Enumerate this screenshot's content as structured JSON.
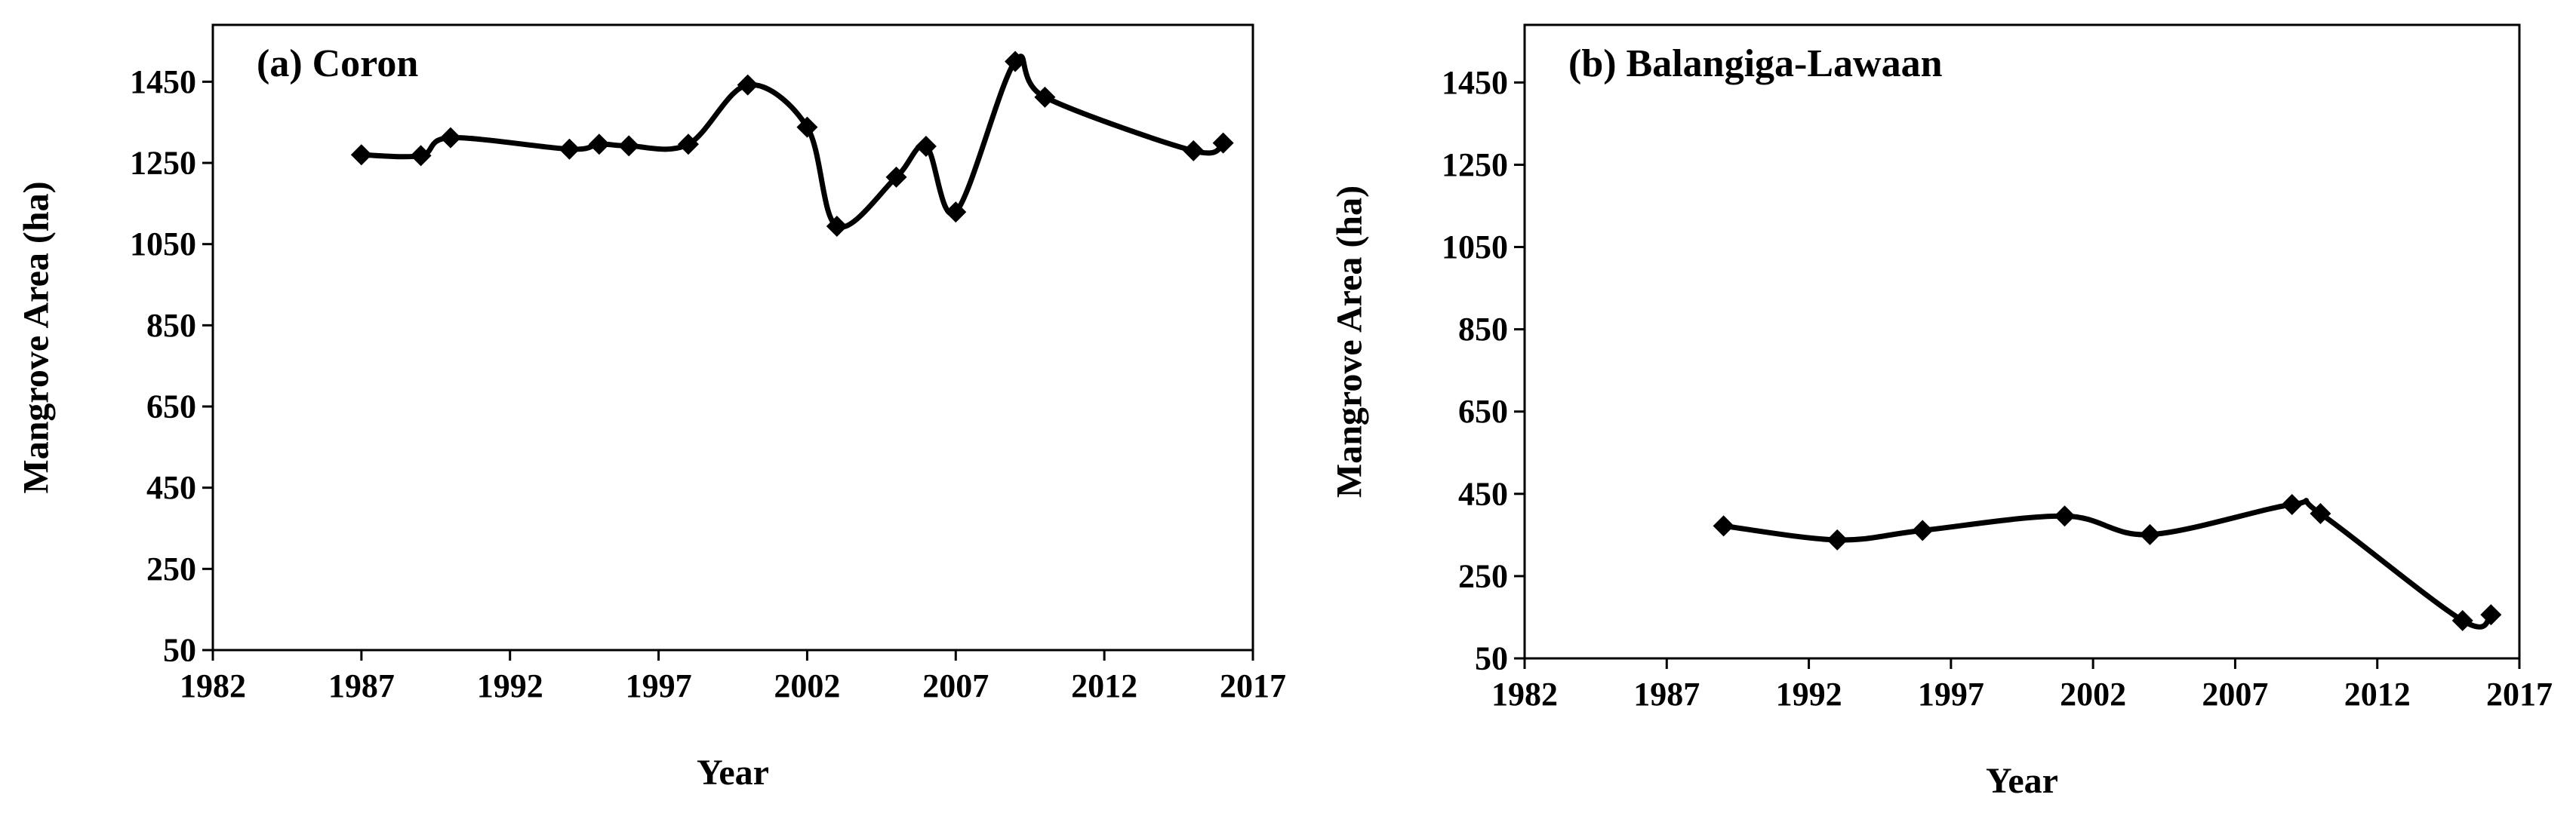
{
  "chart_data": [
    {
      "type": "line",
      "title": "(a) Coron",
      "xlabel": "Year",
      "ylabel": "Mangrove Area (ha)",
      "xlim": [
        1982,
        2017
      ],
      "ylim": [
        50,
        1590
      ],
      "xticks": [
        "1982",
        "1987",
        "1992",
        "1997",
        "2002",
        "2007",
        "2012",
        "2017"
      ],
      "yticks": [
        "50",
        "250",
        "450",
        "650",
        "850",
        "1050",
        "1250",
        "1450"
      ],
      "grid": false,
      "legend": "none",
      "line_color": "#000000",
      "marker": "diamond",
      "smooth": true,
      "series": [
        {
          "x": [
            1987,
            1989,
            1990,
            1994,
            1995,
            1996,
            1998,
            2000,
            2002,
            2003,
            2005,
            2006,
            2007,
            2009,
            2010,
            2015,
            2016
          ],
          "values": [
            1270,
            1268,
            1312,
            1284,
            1296,
            1292,
            1296,
            1442,
            1338,
            1094,
            1215,
            1291,
            1129,
            1500,
            1412,
            1280,
            1299
          ]
        }
      ]
    },
    {
      "type": "line",
      "title": "(b) Balangiga-Lawaan",
      "xlabel": "Year",
      "ylabel": "Mangrove Area (ha)",
      "xlim": [
        1982,
        2017
      ],
      "ylim": [
        50,
        1590
      ],
      "xticks": [
        "1982",
        "1987",
        "1992",
        "1997",
        "2002",
        "2007",
        "2012",
        "2017"
      ],
      "yticks": [
        "50",
        "250",
        "450",
        "650",
        "850",
        "1050",
        "1250",
        "1450"
      ],
      "grid": false,
      "legend": "none",
      "line_color": "#000000",
      "marker": "diamond",
      "smooth": true,
      "series": [
        {
          "x": [
            1989,
            1993,
            1996,
            2001,
            2004,
            2009,
            2010,
            2015,
            2016
          ],
          "values": [
            372,
            338,
            361,
            396,
            351,
            424,
            402,
            142,
            156
          ]
        }
      ]
    }
  ]
}
